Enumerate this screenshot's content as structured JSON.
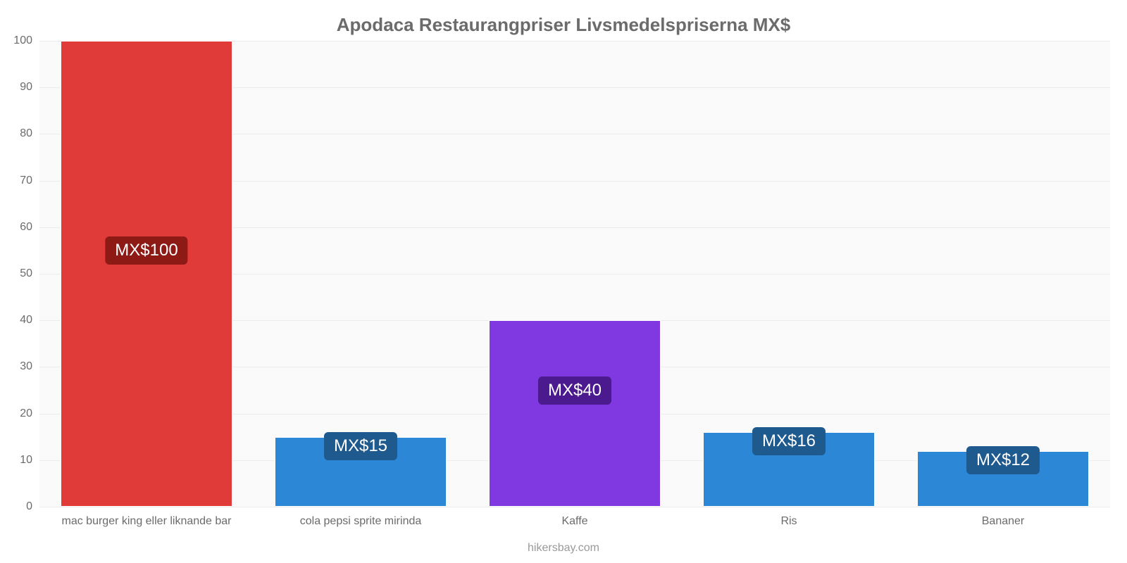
{
  "chart": {
    "type": "bar",
    "title": "Apodaca Restaurangpriser Livsmedelspriserna MX$",
    "title_color": "#6b6b6b",
    "title_fontsize": 26,
    "background_color": "#ffffff",
    "plot_background_color": "#fafafa",
    "grid_color": "#ececec",
    "axis_label_color": "#6b6b6b",
    "axis_label_fontsize": 16,
    "y": {
      "min": 0,
      "max": 100,
      "tick_step": 10,
      "ticks": [
        "0",
        "10",
        "20",
        "30",
        "40",
        "50",
        "60",
        "70",
        "80",
        "90",
        "100"
      ]
    },
    "bar_width_ratio": 0.8,
    "value_badge_bg": {
      "default": "#1e5a8e",
      "0": "#8e1a16",
      "2": "#4a1a8e"
    },
    "value_badge_fontsize": 24,
    "categories": [
      {
        "label": "mac burger king eller liknande bar",
        "value": 100,
        "value_label": "MX$100",
        "color": "#e03b38"
      },
      {
        "label": "cola pepsi sprite mirinda",
        "value": 15,
        "value_label": "MX$15",
        "color": "#2c87d6"
      },
      {
        "label": "Kaffe",
        "value": 40,
        "value_label": "MX$40",
        "color": "#8038e0"
      },
      {
        "label": "Ris",
        "value": 16,
        "value_label": "MX$16",
        "color": "#2c87d6"
      },
      {
        "label": "Bananer",
        "value": 12,
        "value_label": "MX$12",
        "color": "#2c87d6"
      }
    ],
    "footer": "hikersbay.com",
    "footer_color": "#9a9a9a",
    "footer_fontsize": 16
  }
}
